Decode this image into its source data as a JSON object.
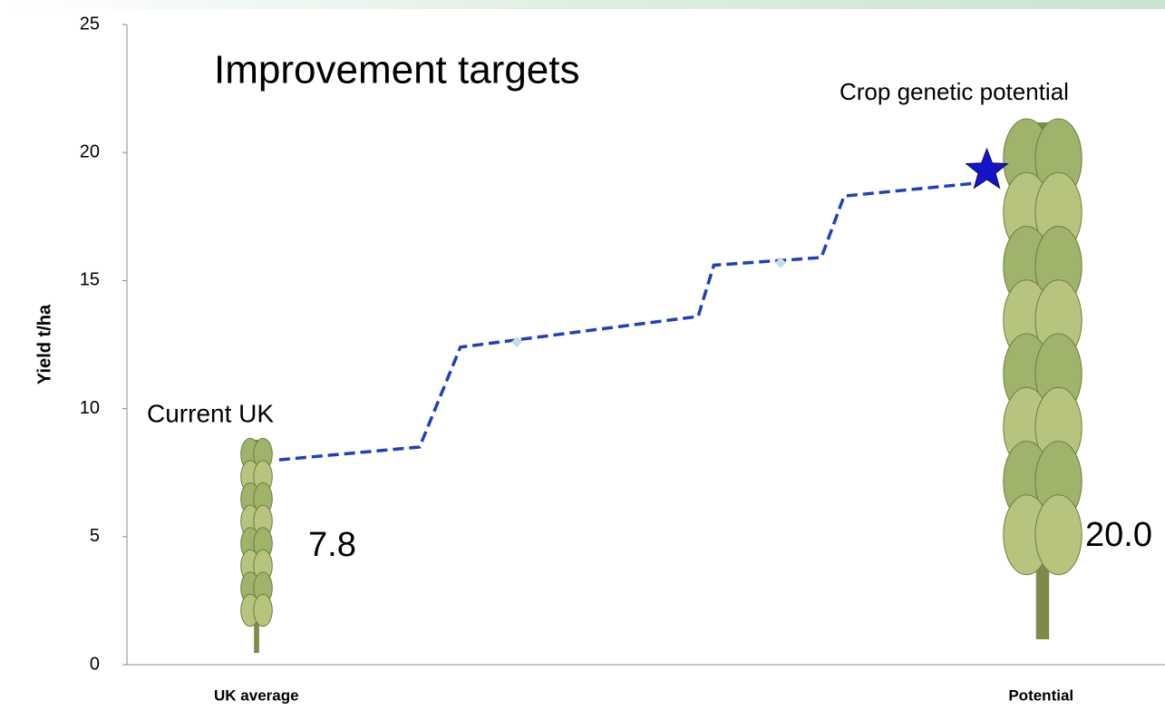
{
  "chart_data": {
    "type": "line",
    "title": "Improvement targets",
    "y_label": "Yield t/ha",
    "xlim": [
      -16.5,
      115.8
    ],
    "xticks": [
      {
        "value": 0,
        "label": "UK average"
      },
      {
        "value": 100,
        "label": "Potential"
      }
    ],
    "ylim": [
      0,
      25
    ],
    "yticks": [
      0,
      5,
      10,
      15,
      20,
      25
    ],
    "series": [
      {
        "style": "dashed",
        "color": "#1f3fbf",
        "x": [
          2.9,
          20.8,
          26.0,
          56.3,
          58.3,
          72.0,
          74.9,
          91.6
        ],
        "values": [
          8.0,
          8.5,
          12.4,
          13.6,
          15.6,
          15.9,
          18.3,
          18.8
        ]
      },
      {
        "style": "diamond",
        "color": "#bde0e6",
        "x": [
          33.2,
          66.8
        ],
        "values": [
          12.6,
          15.7
        ]
      },
      {
        "style": "star",
        "color": "#1414c8",
        "x": [
          93.1
        ],
        "values": [
          19.3
        ]
      }
    ],
    "annotations": [
      "Current UK",
      "7.8",
      "Crop genetic potential",
      "20.0"
    ]
  }
}
